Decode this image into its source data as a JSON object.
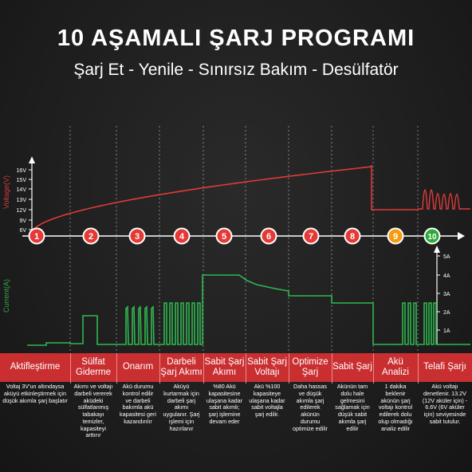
{
  "header": {
    "title": "10 AŞAMALI ŞARJ PROGRAMI",
    "subtitle": "Şarj Et - Yenile - Sınırsız Bakım - Desülfatör"
  },
  "axes": {
    "voltage_label": "Voltage(V)",
    "current_label": "Current(A)",
    "voltage_ticks": [
      "16V",
      "15V",
      "14V",
      "13V",
      "12V",
      "9V",
      "6V",
      "3V"
    ],
    "current_ticks": [
      "5A",
      "4A",
      "3A",
      "2A",
      "1A"
    ]
  },
  "colors": {
    "voltage": "#e03a3a",
    "current": "#2fb84f",
    "band": "#c92f31",
    "badge_red": "#e53935",
    "badge_orange": "#f39c12",
    "badge_green": "#2eaa3a"
  },
  "stages": [
    {
      "num": "1",
      "color": "red",
      "title": "Aktifleştirme",
      "desc": "Voltaj 3V'un altındaysa aküyü etkinleştirmek için düşük akımla şarj başlatır"
    },
    {
      "num": "2",
      "color": "red",
      "title": "Sülfat Giderme",
      "desc": "Akımı ve voltajı darbeli vererek aküdeki sülfatlanmış tabakayı temizler, kapasiteyi arttırır"
    },
    {
      "num": "3",
      "color": "red",
      "title": "Onarım",
      "desc": "Akü durumu kontrol edilir ve darbeli bakımla akü kapasitesi geri kazandırılır"
    },
    {
      "num": "4",
      "color": "red",
      "title": "Darbeli Şarj Akımı",
      "desc": "Aküyü kurtarmak için darbeli şarj akımı uygulanır. Şarj işlemi için hazırlanır"
    },
    {
      "num": "5",
      "color": "red",
      "title": "Sabit Şarj Akımı",
      "desc": "%80 Akü kapasitesine ulaşana kadar sabit akımlı; şarj işlemine devam eder"
    },
    {
      "num": "6",
      "color": "red",
      "title": "Sabit Şarj Voltajı",
      "desc": "Akü %100 kapasiteye ulaşana kadar sabit voltajla şarj edilir."
    },
    {
      "num": "7",
      "color": "red",
      "title": "Optimize Şarj",
      "desc": "Daha hassas ve düşük akımla şarj edilerek akünün durumu optimize edilir"
    },
    {
      "num": "8",
      "color": "red",
      "title": "Sabit Şarj",
      "desc": "Akünün tam dolu hale gelmesini sağlamak için düşük sabit akımla şarj edilir"
    },
    {
      "num": "9",
      "color": "orange",
      "title": "Akü Analizi",
      "desc": "1 dakika beklenir akünün şarj voltajı kontrol edilerek dolu olup olmadığı analiz edilir"
    },
    {
      "num": "10",
      "color": "green",
      "title": "Telafi Şarjı",
      "desc": "Akü voltajı denetlenir. 13.2V (12V aküler için) - 6.6V (6V aküler için) seviyesinde sabit tutulur."
    }
  ]
}
